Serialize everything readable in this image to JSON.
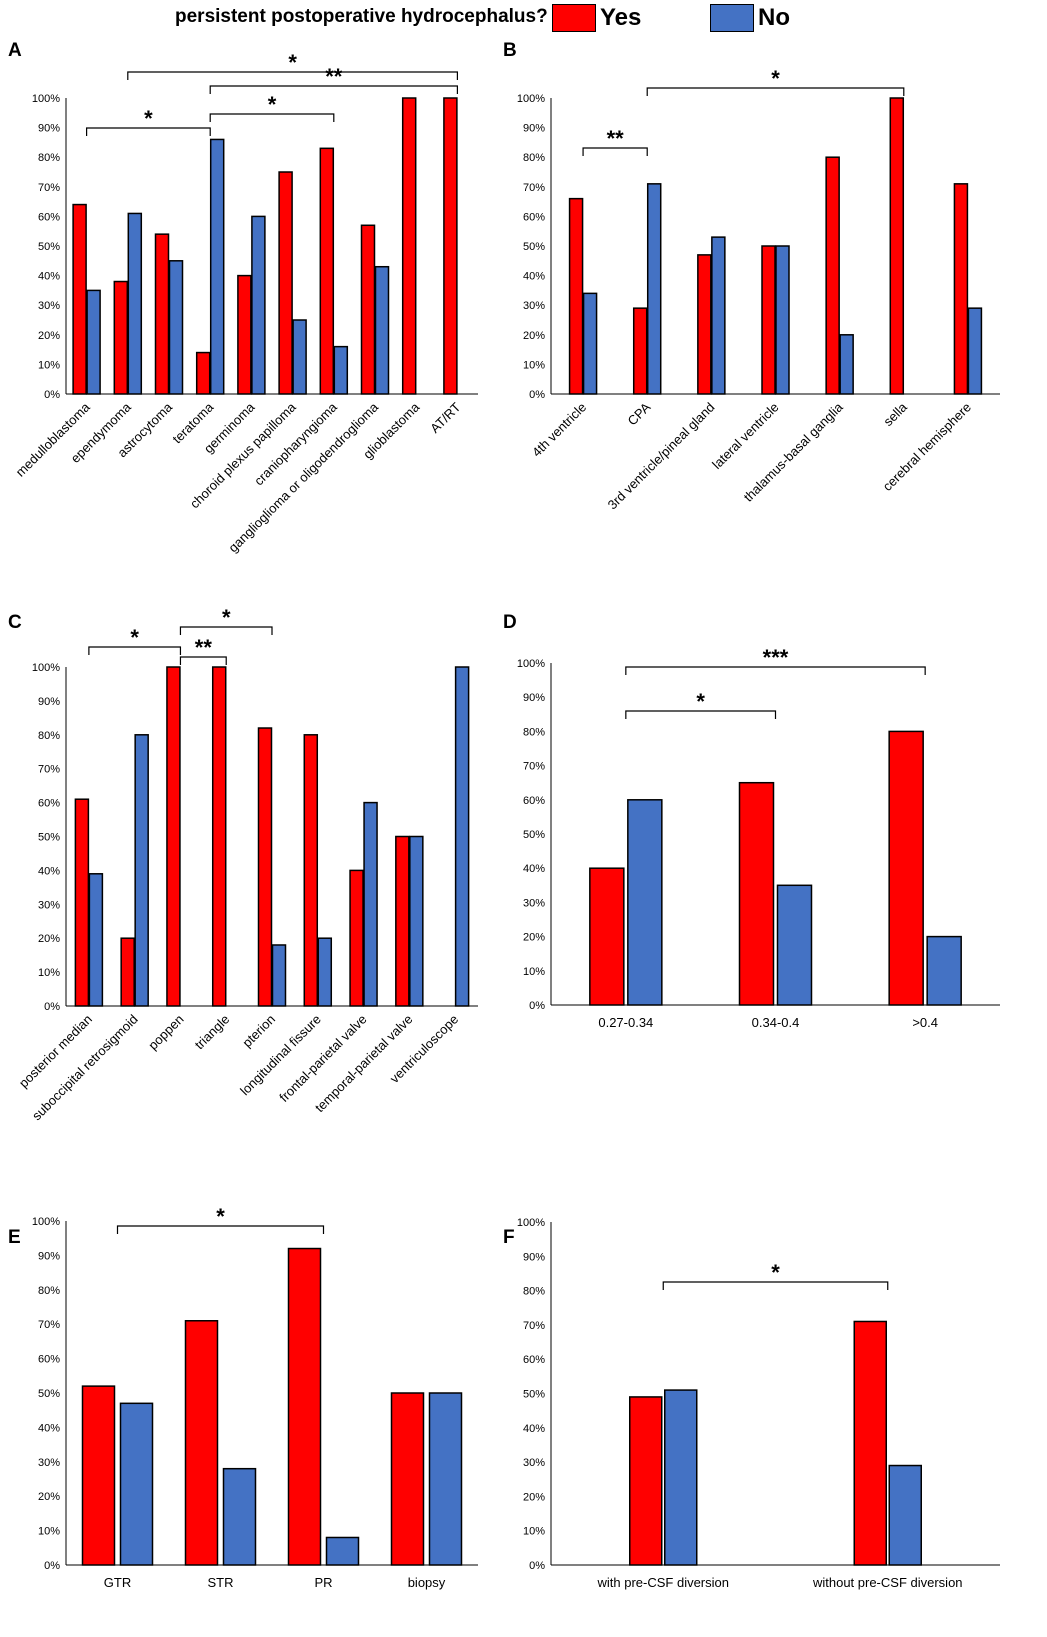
{
  "legend": {
    "title": "persistent postoperative hydrocephalus?",
    "yes_label": "Yes",
    "no_label": "No",
    "yes_color": "#ff0000",
    "no_color": "#4472c4"
  },
  "chart_data": [
    {
      "panel": "A",
      "type": "bar",
      "categories": [
        "medulloblastoma",
        "ependymoma",
        "astrocytoma",
        "teratoma",
        "germinoma",
        "choroid plexus papilloma",
        "craniopharyngioma",
        "ganglioglioma or oligodendroglioma",
        "glioblastoma",
        "AT/RT"
      ],
      "series": [
        {
          "name": "Yes",
          "values": [
            64,
            38,
            54,
            14,
            40,
            75,
            83,
            57,
            100,
            100
          ]
        },
        {
          "name": "No",
          "values": [
            35,
            61,
            45,
            86,
            60,
            25,
            16,
            43,
            0,
            0
          ]
        }
      ],
      "ylim": [
        0,
        100
      ],
      "yticks": [
        "0%",
        "10%",
        "20%",
        "30%",
        "40%",
        "50%",
        "60%",
        "70%",
        "80%",
        "90%",
        "100%"
      ],
      "significance": [
        {
          "from": 0,
          "to": 3,
          "label": "*"
        },
        {
          "from": 3,
          "to": 6,
          "label": "*"
        },
        {
          "from": 3,
          "to": 9,
          "label": "**"
        },
        {
          "from": 1,
          "to": 9,
          "label": "*"
        }
      ]
    },
    {
      "panel": "B",
      "type": "bar",
      "categories": [
        "4th ventricle",
        "CPA",
        "3rd ventricle/pineal gland",
        "lateral ventricle",
        "thalamus-basal ganglia",
        "sella",
        "cerebral hemisphere"
      ],
      "series": [
        {
          "name": "Yes",
          "values": [
            66,
            29,
            47,
            50,
            80,
            100,
            71
          ]
        },
        {
          "name": "No",
          "values": [
            34,
            71,
            53,
            50,
            20,
            0,
            29
          ]
        }
      ],
      "ylim": [
        0,
        100
      ],
      "yticks": [
        "0%",
        "10%",
        "20%",
        "30%",
        "40%",
        "50%",
        "60%",
        "70%",
        "80%",
        "90%",
        "100%"
      ],
      "significance": [
        {
          "from": 0,
          "to": 1,
          "label": "**"
        },
        {
          "from": 1,
          "to": 5,
          "label": "*"
        }
      ]
    },
    {
      "panel": "C",
      "type": "bar",
      "categories": [
        "posterior median",
        "suboccipital retrosigmoid",
        "poppen",
        "triangle",
        "pterion",
        "longitudinal fissure",
        "frontal-parietal valve",
        "temporal-parietal valve",
        "ventriculoscope"
      ],
      "series": [
        {
          "name": "Yes",
          "values": [
            61,
            20,
            100,
            100,
            82,
            80,
            40,
            50,
            0
          ]
        },
        {
          "name": "No",
          "values": [
            39,
            80,
            0,
            0,
            18,
            20,
            60,
            50,
            100
          ]
        }
      ],
      "ylim": [
        0,
        100
      ],
      "yticks": [
        "0%",
        "10%",
        "20%",
        "30%",
        "40%",
        "50%",
        "60%",
        "70%",
        "80%",
        "90%",
        "100%"
      ],
      "significance": [
        {
          "from": 0,
          "to": 2,
          "label": "*"
        },
        {
          "from": 2,
          "to": 3,
          "label": "**"
        },
        {
          "from": 2,
          "to": 4,
          "label": "*"
        }
      ]
    },
    {
      "panel": "D",
      "type": "bar",
      "categories": [
        "0.27-0.34",
        "0.34-0.4",
        ">0.4"
      ],
      "series": [
        {
          "name": "Yes",
          "values": [
            40,
            65,
            80
          ]
        },
        {
          "name": "No",
          "values": [
            60,
            35,
            20
          ]
        }
      ],
      "ylim": [
        0,
        100
      ],
      "yticks": [
        "0%",
        "10%",
        "20%",
        "30%",
        "40%",
        "50%",
        "60%",
        "70%",
        "80%",
        "90%",
        "100%"
      ],
      "significance": [
        {
          "from": 0,
          "to": 1,
          "label": "*"
        },
        {
          "from": 0,
          "to": 2,
          "label": "***"
        }
      ]
    },
    {
      "panel": "E",
      "type": "bar",
      "categories": [
        "GTR",
        "STR",
        "PR",
        "biopsy"
      ],
      "series": [
        {
          "name": "Yes",
          "values": [
            52,
            71,
            92,
            50
          ]
        },
        {
          "name": "No",
          "values": [
            47,
            28,
            8,
            50
          ]
        }
      ],
      "ylim": [
        0,
        100
      ],
      "yticks": [
        "0%",
        "10%",
        "20%",
        "30%",
        "40%",
        "50%",
        "60%",
        "70%",
        "80%",
        "90%",
        "100%"
      ],
      "significance": [
        {
          "from": 0,
          "to": 2,
          "label": "*"
        }
      ]
    },
    {
      "panel": "F",
      "type": "bar",
      "categories": [
        "with pre-CSF diversion",
        "without pre-CSF diversion"
      ],
      "series": [
        {
          "name": "Yes",
          "values": [
            49,
            71
          ]
        },
        {
          "name": "No",
          "values": [
            51,
            29
          ]
        }
      ],
      "ylim": [
        0,
        100
      ],
      "yticks": [
        "0%",
        "10%",
        "20%",
        "30%",
        "40%",
        "50%",
        "60%",
        "70%",
        "80%",
        "90%",
        "100%"
      ],
      "significance": [
        {
          "from": 0,
          "to": 1,
          "label": "*"
        }
      ]
    }
  ]
}
